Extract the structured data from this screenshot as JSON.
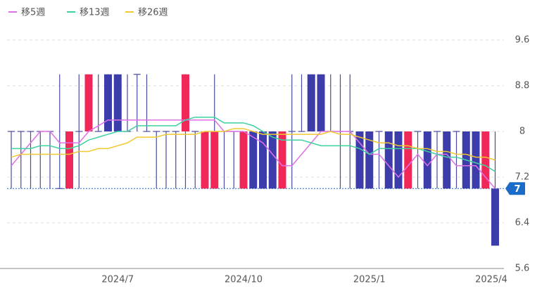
{
  "chart_data": {
    "type": "candlestick",
    "categories": [
      null,
      null,
      null,
      null,
      null,
      null,
      null,
      null,
      null,
      null,
      null,
      "2024/7",
      null,
      null,
      null,
      null,
      null,
      null,
      null,
      null,
      null,
      null,
      null,
      null,
      "2024/10",
      null,
      null,
      null,
      null,
      null,
      null,
      null,
      null,
      null,
      null,
      null,
      null,
      "2025/1",
      null,
      null,
      null,
      null,
      null,
      null,
      null,
      null,
      null,
      null,
      null,
      null,
      "2025/4"
    ],
    "open": [
      8,
      8,
      8,
      8,
      8,
      7,
      7,
      8,
      8,
      8,
      9,
      9,
      8,
      9,
      8,
      8,
      8,
      8,
      8,
      8,
      7,
      7,
      8,
      8,
      7,
      8,
      8,
      8,
      7,
      8,
      8,
      9,
      9,
      8,
      8,
      8,
      8,
      8,
      8,
      8,
      8,
      7,
      8,
      8,
      8,
      8,
      8,
      8,
      8,
      7,
      7
    ],
    "high": [
      8,
      8,
      8,
      8,
      8,
      9,
      8,
      9,
      9,
      9,
      9,
      9,
      9,
      9,
      9,
      8,
      8,
      8,
      9,
      8,
      8,
      9,
      8,
      8,
      8,
      8,
      8,
      8,
      8,
      9,
      9,
      9,
      9,
      9,
      9,
      9,
      8,
      8,
      8,
      8,
      8,
      8,
      8,
      8,
      8,
      8,
      8,
      8,
      8,
      8,
      8
    ],
    "low": [
      7,
      7,
      7,
      7,
      7,
      7,
      7,
      7,
      8,
      8,
      8,
      8,
      8,
      8,
      8,
      7,
      7,
      7,
      7,
      7,
      7,
      7,
      7,
      7,
      7,
      7,
      7,
      7,
      7,
      7,
      8,
      8,
      8,
      8,
      7,
      7,
      7,
      7,
      7,
      7,
      7,
      7,
      7,
      7,
      7,
      7,
      7,
      7,
      7,
      7,
      6
    ],
    "close": [
      8,
      8,
      8,
      8,
      8,
      7,
      8,
      8,
      9,
      8,
      8,
      8,
      8,
      9,
      8,
      8,
      8,
      8,
      9,
      8,
      8,
      8,
      8,
      8,
      8,
      7,
      7,
      7,
      8,
      8,
      8,
      8,
      8,
      8,
      8,
      8,
      7,
      7,
      8,
      7,
      7,
      8,
      8,
      7,
      8,
      7,
      8,
      7,
      7,
      8,
      6
    ],
    "up_color": "#f0285a",
    "down_color": "#3c3caa",
    "wick_color": "#4a4aa0",
    "series": [
      {
        "name": "移5週",
        "color": "#e070e8",
        "values": [
          7.4,
          7.6,
          7.8,
          8.0,
          8.0,
          7.8,
          7.8,
          7.8,
          8.0,
          8.1,
          8.2,
          8.2,
          8.2,
          8.2,
          8.2,
          8.2,
          8.2,
          8.2,
          8.2,
          8.2,
          8.2,
          8.2,
          8.0,
          8.0,
          8.0,
          7.9,
          7.8,
          7.6,
          7.4,
          7.4,
          7.6,
          7.8,
          8.0,
          8.0,
          8.0,
          8.0,
          7.8,
          7.6,
          7.6,
          7.4,
          7.2,
          7.4,
          7.6,
          7.4,
          7.6,
          7.6,
          7.4,
          7.4,
          7.4,
          7.2,
          7.0
        ]
      },
      {
        "name": "移13週",
        "color": "#3cd29c",
        "values": [
          7.7,
          7.7,
          7.7,
          7.75,
          7.75,
          7.7,
          7.7,
          7.75,
          7.85,
          7.9,
          7.95,
          8.0,
          8.0,
          8.1,
          8.1,
          8.1,
          8.1,
          8.1,
          8.2,
          8.25,
          8.25,
          8.25,
          8.15,
          8.15,
          8.15,
          8.1,
          8.0,
          7.9,
          7.85,
          7.85,
          7.85,
          7.8,
          7.75,
          7.75,
          7.75,
          7.75,
          7.7,
          7.6,
          7.7,
          7.7,
          7.7,
          7.7,
          7.7,
          7.65,
          7.6,
          7.55,
          7.55,
          7.5,
          7.45,
          7.4,
          7.3
        ]
      },
      {
        "name": "移26週",
        "color": "#f0c830",
        "values": [
          7.55,
          7.6,
          7.6,
          7.6,
          7.6,
          7.6,
          7.6,
          7.65,
          7.65,
          7.7,
          7.7,
          7.75,
          7.8,
          7.9,
          7.9,
          7.9,
          7.95,
          7.95,
          7.95,
          7.95,
          8.0,
          8.0,
          8.0,
          8.05,
          8.05,
          8.0,
          7.95,
          7.95,
          7.95,
          7.95,
          7.95,
          7.95,
          7.95,
          8.0,
          7.95,
          7.95,
          7.9,
          7.85,
          7.8,
          7.8,
          7.75,
          7.75,
          7.7,
          7.7,
          7.65,
          7.65,
          7.6,
          7.6,
          7.55,
          7.55,
          7.5
        ]
      }
    ],
    "last_price": 7,
    "last_price_color": "#1a6cc8",
    "ylim": [
      5.6,
      9.6
    ],
    "yticks": [
      9.6,
      8.8,
      8,
      7.2,
      6.4,
      5.6
    ],
    "grid": true
  }
}
